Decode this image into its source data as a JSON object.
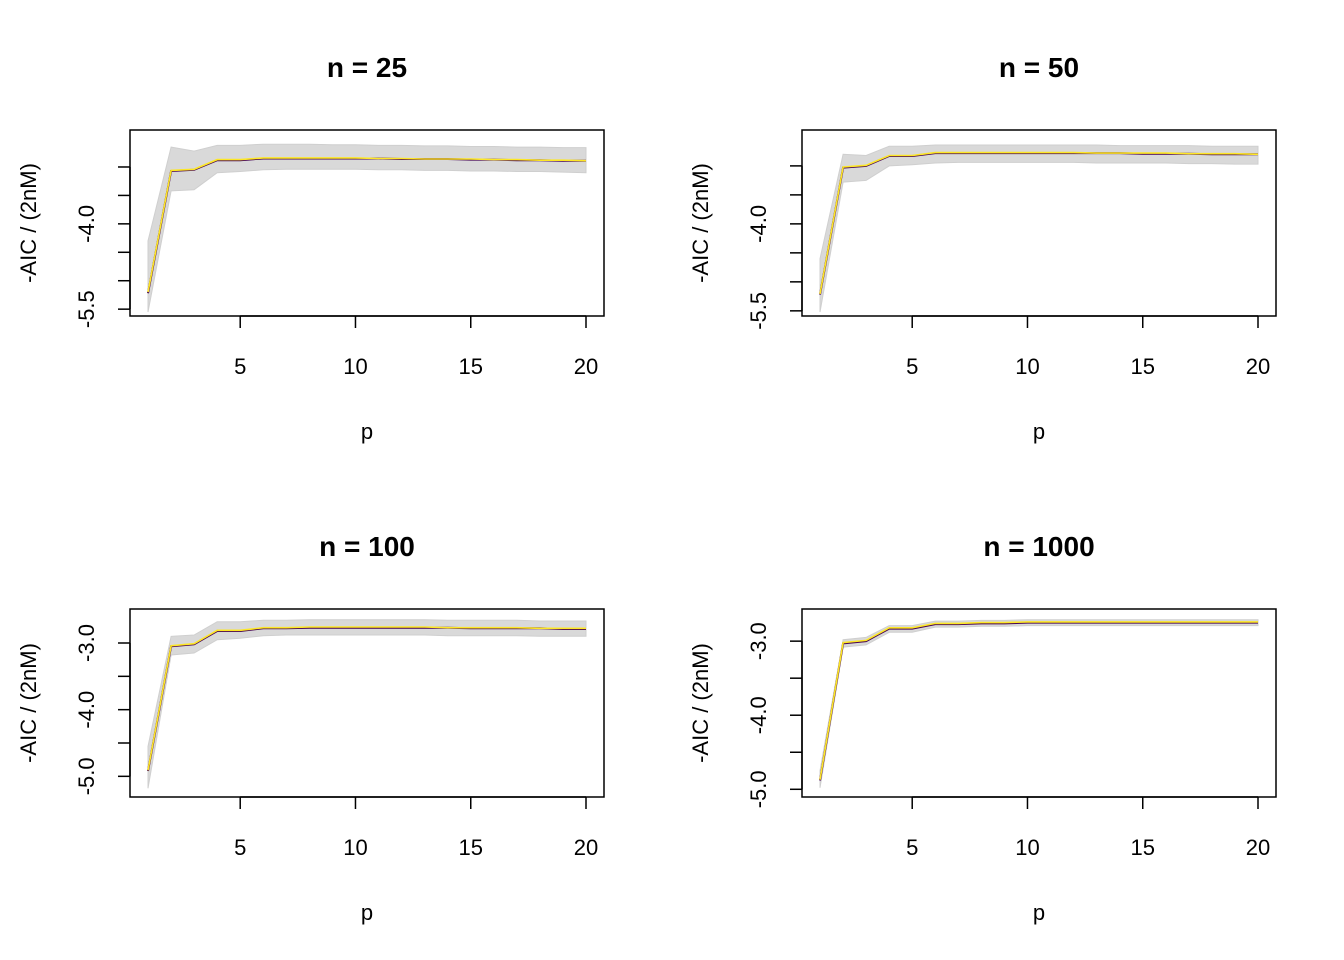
{
  "chart_data": [
    {
      "type": "line",
      "title": "n = 25",
      "xlabel": "p",
      "ylabel": "-AIC / (2nM)",
      "xlim": [
        1,
        20
      ],
      "ylim": [
        -5.55,
        -2.42
      ],
      "xticks": [
        5,
        10,
        15,
        20
      ],
      "xtick_labels": [
        "5",
        "10",
        "15",
        "20"
      ],
      "yticks": [
        -5.5,
        -5.0,
        -4.5,
        -4.0,
        -3.5,
        -3.0
      ],
      "ytick_labels": [
        "-5.5",
        "",
        "",
        "-4.0",
        "",
        ""
      ],
      "x": [
        1,
        2,
        3,
        4,
        5,
        6,
        7,
        8,
        9,
        10,
        11,
        12,
        13,
        14,
        15,
        16,
        17,
        18,
        19,
        20
      ],
      "series": [
        {
          "color": "#440154",
          "values": [
            -5.22,
            -3.07,
            -3.05,
            -2.88,
            -2.88,
            -2.85,
            -2.85,
            -2.85,
            -2.85,
            -2.85,
            -2.85,
            -2.86,
            -2.86,
            -2.86,
            -2.87,
            -2.87,
            -2.88,
            -2.88,
            -2.89,
            -2.89
          ]
        },
        {
          "color": "#fde725",
          "values": [
            -5.2,
            -3.06,
            -3.04,
            -2.87,
            -2.87,
            -2.84,
            -2.84,
            -2.84,
            -2.84,
            -2.84,
            -2.85,
            -2.85,
            -2.86,
            -2.86,
            -2.86,
            -2.87,
            -2.87,
            -2.88,
            -2.88,
            -2.89
          ]
        }
      ],
      "band": {
        "color": "#d9d9d9",
        "upper": [
          -4.3,
          -2.65,
          -2.72,
          -2.62,
          -2.62,
          -2.6,
          -2.6,
          -2.6,
          -2.61,
          -2.61,
          -2.62,
          -2.62,
          -2.63,
          -2.63,
          -2.64,
          -2.64,
          -2.65,
          -2.65,
          -2.66,
          -2.66
        ],
        "lower": [
          -5.55,
          -3.42,
          -3.4,
          -3.1,
          -3.08,
          -3.05,
          -3.04,
          -3.04,
          -3.04,
          -3.04,
          -3.05,
          -3.05,
          -3.06,
          -3.06,
          -3.07,
          -3.07,
          -3.08,
          -3.08,
          -3.09,
          -3.1
        ]
      }
    },
    {
      "type": "line",
      "title": "n = 50",
      "xlabel": "p",
      "ylabel": "-AIC / (2nM)",
      "xlim": [
        1,
        20
      ],
      "ylim": [
        -5.52,
        -2.45
      ],
      "xticks": [
        5,
        10,
        15,
        20
      ],
      "xtick_labels": [
        "5",
        "10",
        "15",
        "20"
      ],
      "yticks": [
        -5.5,
        -5.0,
        -4.5,
        -4.0,
        -3.5,
        -3.0
      ],
      "ytick_labels": [
        "-5.5",
        "",
        "",
        "-4.0",
        "",
        ""
      ],
      "x": [
        1,
        2,
        3,
        4,
        5,
        6,
        7,
        8,
        9,
        10,
        11,
        12,
        13,
        14,
        15,
        16,
        17,
        18,
        19,
        20
      ],
      "series": [
        {
          "color": "#440154",
          "values": [
            -5.22,
            -3.03,
            -3.0,
            -2.83,
            -2.83,
            -2.78,
            -2.78,
            -2.78,
            -2.78,
            -2.78,
            -2.78,
            -2.78,
            -2.78,
            -2.78,
            -2.79,
            -2.79,
            -2.79,
            -2.8,
            -2.8,
            -2.8
          ]
        },
        {
          "color": "#fde725",
          "values": [
            -5.21,
            -3.02,
            -2.99,
            -2.82,
            -2.82,
            -2.77,
            -2.77,
            -2.77,
            -2.77,
            -2.77,
            -2.77,
            -2.77,
            -2.78,
            -2.78,
            -2.78,
            -2.78,
            -2.79,
            -2.79,
            -2.79,
            -2.8
          ]
        }
      ],
      "band": {
        "color": "#d9d9d9",
        "upper": [
          -4.6,
          -2.8,
          -2.82,
          -2.66,
          -2.66,
          -2.64,
          -2.64,
          -2.64,
          -2.64,
          -2.64,
          -2.64,
          -2.64,
          -2.64,
          -2.65,
          -2.65,
          -2.65,
          -2.65,
          -2.66,
          -2.66,
          -2.66
        ],
        "lower": [
          -5.52,
          -3.28,
          -3.25,
          -3.0,
          -2.98,
          -2.95,
          -2.94,
          -2.94,
          -2.94,
          -2.94,
          -2.94,
          -2.94,
          -2.95,
          -2.95,
          -2.95,
          -2.95,
          -2.96,
          -2.96,
          -2.97,
          -2.97
        ]
      }
    },
    {
      "type": "line",
      "title": "n = 100",
      "xlabel": "p",
      "ylabel": "-AIC / (2nM)",
      "xlim": [
        1,
        20
      ],
      "ylim": [
        -5.25,
        -2.55
      ],
      "xticks": [
        5,
        10,
        15,
        20
      ],
      "xtick_labels": [
        "5",
        "10",
        "15",
        "20"
      ],
      "yticks": [
        -5.0,
        -4.5,
        -4.0,
        -3.5,
        -3.0
      ],
      "ytick_labels": [
        "-5.0",
        "",
        "-4.0",
        "",
        "-3.0"
      ],
      "x": [
        1,
        2,
        3,
        4,
        5,
        6,
        7,
        8,
        9,
        10,
        11,
        12,
        13,
        14,
        15,
        16,
        17,
        18,
        19,
        20
      ],
      "series": [
        {
          "color": "#440154",
          "values": [
            -4.92,
            -3.05,
            -3.02,
            -2.82,
            -2.82,
            -2.78,
            -2.78,
            -2.77,
            -2.77,
            -2.77,
            -2.77,
            -2.77,
            -2.77,
            -2.77,
            -2.78,
            -2.78,
            -2.78,
            -2.78,
            -2.79,
            -2.79
          ]
        },
        {
          "color": "#fde725",
          "values": [
            -4.91,
            -3.04,
            -3.01,
            -2.81,
            -2.81,
            -2.77,
            -2.77,
            -2.76,
            -2.76,
            -2.76,
            -2.76,
            -2.76,
            -2.76,
            -2.77,
            -2.77,
            -2.77,
            -2.77,
            -2.78,
            -2.78,
            -2.78
          ]
        }
      ],
      "band": {
        "color": "#d9d9d9",
        "upper": [
          -4.55,
          -2.9,
          -2.88,
          -2.68,
          -2.68,
          -2.66,
          -2.66,
          -2.65,
          -2.65,
          -2.65,
          -2.65,
          -2.65,
          -2.65,
          -2.66,
          -2.66,
          -2.66,
          -2.66,
          -2.67,
          -2.67,
          -2.67
        ],
        "lower": [
          -5.18,
          -3.18,
          -3.15,
          -2.95,
          -2.93,
          -2.89,
          -2.88,
          -2.88,
          -2.88,
          -2.88,
          -2.88,
          -2.88,
          -2.88,
          -2.89,
          -2.89,
          -2.89,
          -2.89,
          -2.9,
          -2.9,
          -2.9
        ]
      }
    },
    {
      "type": "line",
      "title": "n = 1000",
      "xlabel": "p",
      "ylabel": "-AIC / (2nM)",
      "xlim": [
        1,
        20
      ],
      "ylim": [
        -5.05,
        -2.62
      ],
      "xticks": [
        5,
        10,
        15,
        20
      ],
      "xtick_labels": [
        "5",
        "10",
        "15",
        "20"
      ],
      "yticks": [
        -5.0,
        -4.5,
        -4.0,
        -3.5,
        -3.0
      ],
      "ytick_labels": [
        "-5.0",
        "",
        "-4.0",
        "",
        "-3.0"
      ],
      "x": [
        1,
        2,
        3,
        4,
        5,
        6,
        7,
        8,
        9,
        10,
        11,
        12,
        13,
        14,
        15,
        16,
        17,
        18,
        19,
        20
      ],
      "series": [
        {
          "color": "#440154",
          "values": [
            -4.88,
            -3.03,
            -3.0,
            -2.83,
            -2.83,
            -2.77,
            -2.77,
            -2.76,
            -2.76,
            -2.75,
            -2.75,
            -2.75,
            -2.75,
            -2.75,
            -2.75,
            -2.75,
            -2.75,
            -2.75,
            -2.75,
            -2.75
          ]
        },
        {
          "color": "#fde725",
          "values": [
            -4.87,
            -3.02,
            -2.99,
            -2.82,
            -2.82,
            -2.76,
            -2.76,
            -2.75,
            -2.75,
            -2.74,
            -2.74,
            -2.74,
            -2.74,
            -2.74,
            -2.74,
            -2.74,
            -2.74,
            -2.74,
            -2.74,
            -2.74
          ]
        }
      ],
      "band": {
        "color": "#d9d9d9",
        "upper": [
          -4.75,
          -2.98,
          -2.95,
          -2.79,
          -2.79,
          -2.73,
          -2.73,
          -2.72,
          -2.72,
          -2.71,
          -2.71,
          -2.71,
          -2.71,
          -2.71,
          -2.71,
          -2.71,
          -2.71,
          -2.71,
          -2.71,
          -2.71
        ],
        "lower": [
          -4.98,
          -3.08,
          -3.05,
          -2.88,
          -2.88,
          -2.81,
          -2.81,
          -2.8,
          -2.8,
          -2.79,
          -2.79,
          -2.79,
          -2.79,
          -2.79,
          -2.79,
          -2.79,
          -2.79,
          -2.79,
          -2.79,
          -2.79
        ]
      }
    }
  ]
}
